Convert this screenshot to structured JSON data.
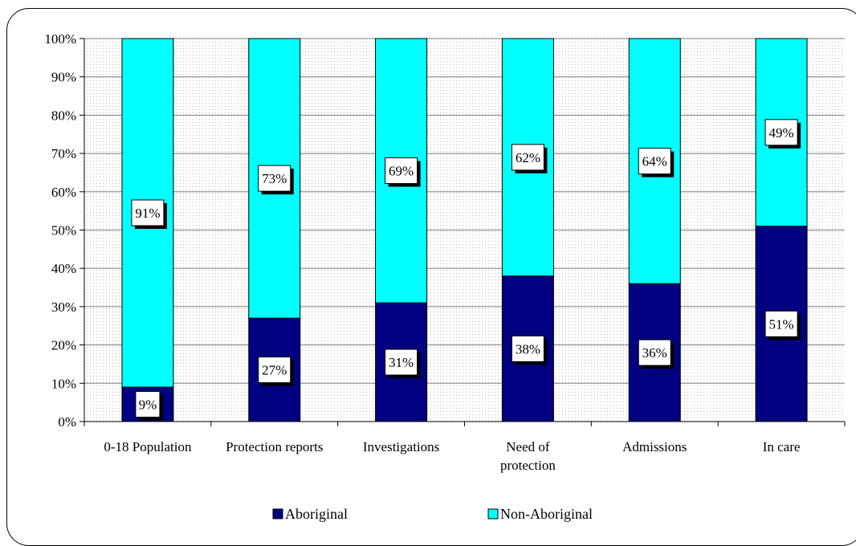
{
  "chart_data": {
    "type": "bar",
    "stacked": true,
    "categories": [
      "0-18 Population",
      "Protection reports",
      "Investigations",
      "Need of protection",
      "Admissions",
      "In care"
    ],
    "category_lines": [
      [
        "0-18 Population"
      ],
      [
        "Protection reports"
      ],
      [
        "Investigations"
      ],
      [
        "Need of",
        "protection"
      ],
      [
        "Admissions"
      ],
      [
        "In care"
      ]
    ],
    "series": [
      {
        "name": "Aboriginal",
        "values": [
          9,
          27,
          31,
          38,
          36,
          51
        ],
        "labels": [
          "9%",
          "27%",
          "31%",
          "38%",
          "36%",
          "51%"
        ],
        "color": "#000080"
      },
      {
        "name": "Non-Aboriginal",
        "values": [
          91,
          73,
          69,
          62,
          64,
          49
        ],
        "labels": [
          "91%",
          "73%",
          "69%",
          "62%",
          "64%",
          "49%"
        ],
        "color": "#00FFFF"
      }
    ],
    "ylim": [
      0,
      100
    ],
    "yticks": [
      "0%",
      "10%",
      "20%",
      "30%",
      "40%",
      "50%",
      "60%",
      "70%",
      "80%",
      "90%",
      "100%"
    ],
    "grid": true,
    "legend": "bottom",
    "title": "",
    "xlabel": "",
    "ylabel": ""
  }
}
